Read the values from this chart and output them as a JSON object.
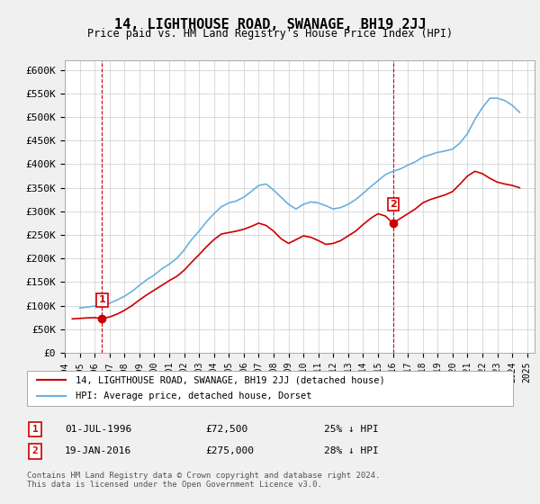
{
  "title": "14, LIGHTHOUSE ROAD, SWANAGE, BH19 2JJ",
  "subtitle": "Price paid vs. HM Land Registry's House Price Index (HPI)",
  "ylabel": "",
  "xlim_start": 1994.0,
  "xlim_end": 2025.5,
  "ylim_min": 0,
  "ylim_max": 620000,
  "yticks": [
    0,
    50000,
    100000,
    150000,
    200000,
    250000,
    300000,
    350000,
    400000,
    450000,
    500000,
    550000,
    600000
  ],
  "ytick_labels": [
    "£0",
    "£50K",
    "£100K",
    "£150K",
    "£200K",
    "£250K",
    "£300K",
    "£350K",
    "£400K",
    "£450K",
    "£500K",
    "£550K",
    "£600K"
  ],
  "hpi_color": "#6ab0e0",
  "price_color": "#cc0000",
  "marker_color": "#cc0000",
  "sale1_x": 1996.5,
  "sale1_y": 72500,
  "sale1_label": "1",
  "sale2_x": 2016.05,
  "sale2_y": 275000,
  "sale2_label": "2",
  "legend_line1": "14, LIGHTHOUSE ROAD, SWANAGE, BH19 2JJ (detached house)",
  "legend_line2": "HPI: Average price, detached house, Dorset",
  "table_row1": "1     01-JUL-1996          £72,500          25% ↓ HPI",
  "table_row2": "2     19-JAN-2016          £275,000        28% ↓ HPI",
  "footer": "Contains HM Land Registry data © Crown copyright and database right 2024.\nThis data is licensed under the Open Government Licence v3.0.",
  "bg_color": "#f0f0f0",
  "plot_bg": "#ffffff",
  "hpi_data_x": [
    1995,
    1995.5,
    1996,
    1996.5,
    1997,
    1997.5,
    1998,
    1998.5,
    1999,
    1999.5,
    2000,
    2000.5,
    2001,
    2001.5,
    2002,
    2002.5,
    2003,
    2003.5,
    2004,
    2004.5,
    2005,
    2005.5,
    2006,
    2006.5,
    2007,
    2007.5,
    2008,
    2008.5,
    2009,
    2009.5,
    2010,
    2010.5,
    2011,
    2011.5,
    2012,
    2012.5,
    2013,
    2013.5,
    2014,
    2014.5,
    2015,
    2015.5,
    2016,
    2016.5,
    2017,
    2017.5,
    2018,
    2018.5,
    2019,
    2019.5,
    2020,
    2020.5,
    2021,
    2021.5,
    2022,
    2022.5,
    2023,
    2023.5,
    2024,
    2024.5
  ],
  "hpi_data_y": [
    95000,
    97000,
    99000,
    100000,
    105000,
    112000,
    120000,
    130000,
    143000,
    155000,
    165000,
    178000,
    188000,
    200000,
    218000,
    240000,
    258000,
    278000,
    295000,
    310000,
    318000,
    322000,
    330000,
    342000,
    355000,
    358000,
    345000,
    330000,
    315000,
    305000,
    315000,
    320000,
    318000,
    312000,
    305000,
    308000,
    315000,
    325000,
    338000,
    352000,
    365000,
    378000,
    385000,
    390000,
    398000,
    405000,
    415000,
    420000,
    425000,
    428000,
    432000,
    445000,
    465000,
    495000,
    520000,
    540000,
    540000,
    535000,
    525000,
    510000
  ],
  "price_data_x": [
    1994.5,
    1995,
    1995.5,
    1996,
    1996.5,
    1997,
    1997.5,
    1998,
    1998.5,
    1999,
    1999.5,
    2000,
    2000.5,
    2001,
    2001.5,
    2002,
    2002.5,
    2003,
    2003.5,
    2004,
    2004.5,
    2005,
    2005.5,
    2006,
    2006.5,
    2007,
    2007.5,
    2008,
    2008.5,
    2009,
    2009.5,
    2010,
    2010.5,
    2011,
    2011.5,
    2012,
    2012.5,
    2013,
    2013.5,
    2014,
    2014.5,
    2015,
    2015.5,
    2016,
    2016.5,
    2017,
    2017.5,
    2018,
    2018.5,
    2019,
    2019.5,
    2020,
    2020.5,
    2021,
    2021.5,
    2022,
    2022.5,
    2023,
    2023.5,
    2024,
    2024.5
  ],
  "price_data_y": [
    72000,
    73000,
    74000,
    74500,
    72500,
    76000,
    82000,
    90000,
    100000,
    112000,
    123000,
    133000,
    143000,
    153000,
    162000,
    175000,
    192000,
    208000,
    225000,
    240000,
    252000,
    255000,
    258000,
    262000,
    268000,
    275000,
    270000,
    258000,
    242000,
    232000,
    240000,
    248000,
    245000,
    238000,
    230000,
    232000,
    238000,
    248000,
    258000,
    272000,
    285000,
    295000,
    290000,
    275000,
    285000,
    295000,
    305000,
    318000,
    325000,
    330000,
    335000,
    342000,
    358000,
    375000,
    385000,
    380000,
    370000,
    362000,
    358000,
    355000,
    350000
  ]
}
